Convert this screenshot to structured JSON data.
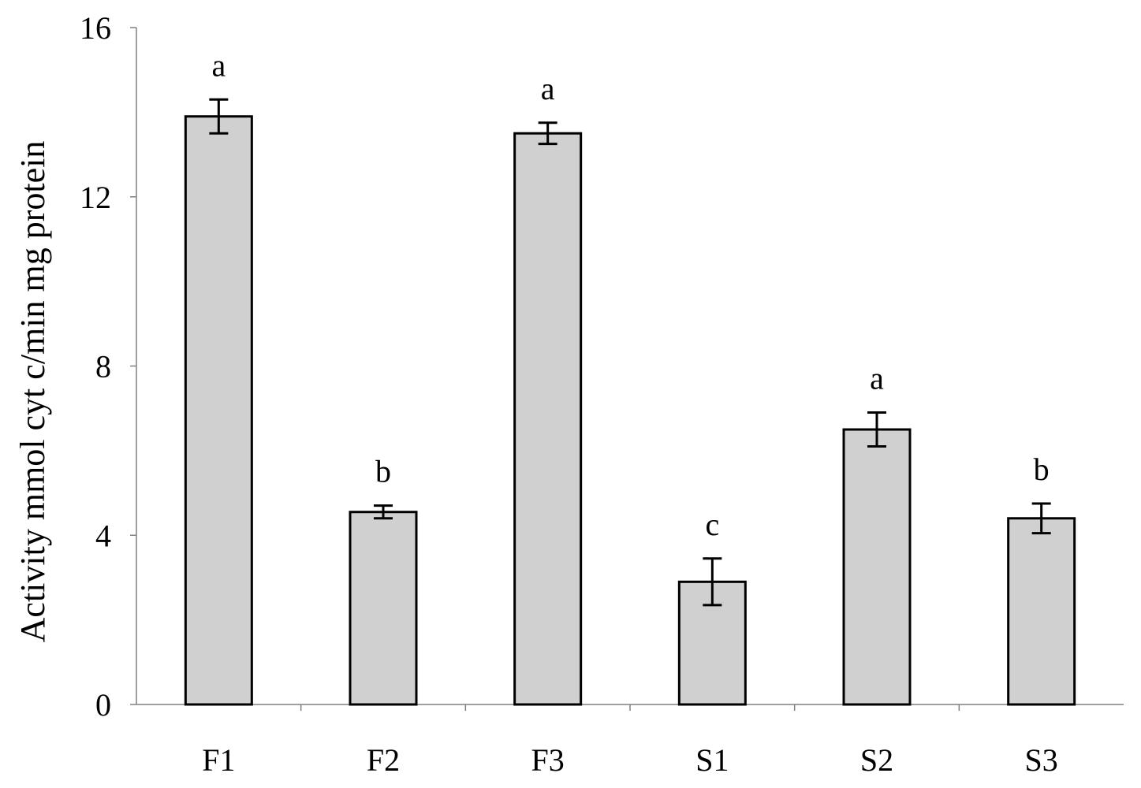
{
  "chart_data": {
    "type": "bar",
    "categories": [
      "F1",
      "F2",
      "F3",
      "S1",
      "S2",
      "S3"
    ],
    "values": [
      13.9,
      4.55,
      13.5,
      2.9,
      6.5,
      4.4
    ],
    "errors": [
      0.4,
      0.15,
      0.25,
      0.55,
      0.4,
      0.35
    ],
    "annotations": [
      "a",
      "b",
      "a",
      "c",
      "a",
      "b"
    ],
    "title": "",
    "xlabel": "",
    "ylabel": "Activity mmol cyt c/min mg protein",
    "ylim": [
      0,
      16
    ],
    "yticks": [
      0,
      4,
      8,
      12,
      16
    ],
    "grid": false,
    "bar_color": "#d0d0d0",
    "edge_color": "#000000"
  }
}
